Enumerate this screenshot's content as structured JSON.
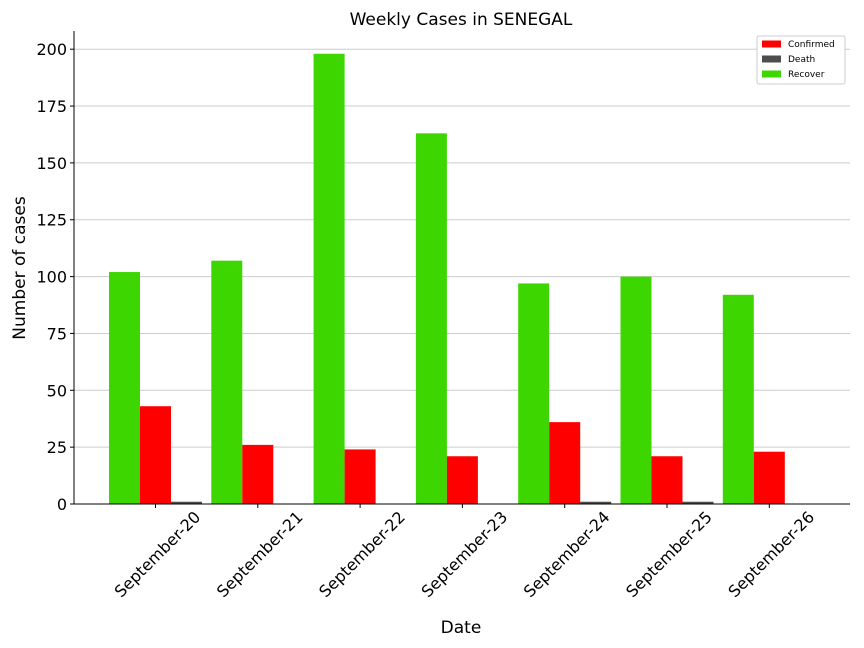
{
  "chart_data": {
    "type": "bar",
    "title": "Weekly Cases in SENEGAL",
    "xlabel": "Date",
    "ylabel": "Number of cases",
    "categories": [
      "September-20",
      "September-21",
      "September-22",
      "September-23",
      "September-24",
      "September-25",
      "September-26"
    ],
    "series": [
      {
        "name": "Recover",
        "color": "#3dd600",
        "values": [
          102,
          107,
          198,
          163,
          97,
          100,
          92
        ]
      },
      {
        "name": "Confirmed",
        "color": "#ff0000",
        "values": [
          43,
          26,
          24,
          21,
          36,
          21,
          23
        ]
      },
      {
        "name": "Death",
        "color": "#4d4d4d",
        "values": [
          1,
          0,
          0,
          0,
          1,
          1,
          0
        ]
      }
    ],
    "legend_order": [
      "Confirmed",
      "Death",
      "Recover"
    ],
    "legend_position": "top-right",
    "ylim": [
      0,
      208
    ],
    "yticks": [
      0,
      25,
      50,
      75,
      100,
      125,
      150,
      175,
      200
    ],
    "grid": "horizontal"
  }
}
